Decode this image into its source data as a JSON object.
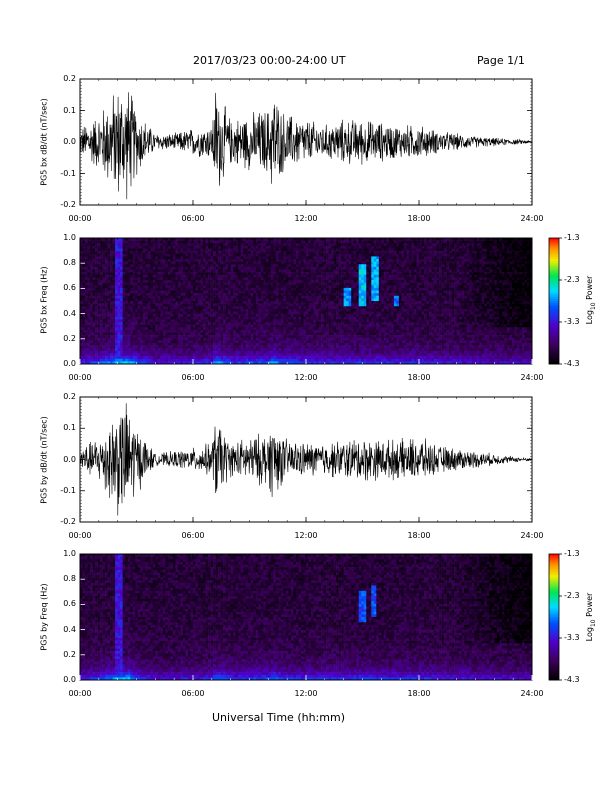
{
  "header": {
    "title": "2017/03/23  00:00-24:00 UT",
    "page": "Page 1/1"
  },
  "footer": {
    "xlabel": "Universal Time (hh:mm)"
  },
  "chart_data": [
    {
      "type": "line",
      "ylabel": "PG5 bx dB/dt (nT/sec)",
      "ylim": [
        -0.2,
        0.2
      ],
      "yticks": [
        "0.2",
        "0.1",
        "0.0",
        "-0.1",
        "-0.2"
      ],
      "xticks": [
        "00:00",
        "06:00",
        "12:00",
        "18:00",
        "24:00"
      ],
      "xlim_hours": [
        0,
        24
      ],
      "series": [
        {
          "x_hours": [
            0,
            1,
            2,
            2.3,
            2.6,
            3,
            4,
            5,
            6,
            7,
            7.2,
            8,
            9,
            10,
            10.3,
            10.6,
            11,
            12,
            13,
            14,
            15,
            16,
            17,
            18,
            19,
            20,
            21,
            22,
            23,
            24
          ],
          "envelope": [
            0.05,
            0.1,
            0.2,
            0.2,
            0.2,
            0.12,
            0.03,
            0.03,
            0.05,
            0.06,
            0.2,
            0.08,
            0.1,
            0.12,
            0.2,
            0.12,
            0.1,
            0.08,
            0.06,
            0.08,
            0.08,
            0.07,
            0.06,
            0.06,
            0.04,
            0.03,
            0.02,
            0.015,
            0.01,
            0.005
          ]
        }
      ]
    },
    {
      "type": "heatmap",
      "ylabel": "PG5 bx Freq (Hz)",
      "ylim": [
        0,
        1.0
      ],
      "yticks": [
        "1.0",
        "0.8",
        "0.6",
        "0.4",
        "0.2",
        "0.0"
      ],
      "xticks": [
        "00:00",
        "06:00",
        "12:00",
        "18:00",
        "24:00"
      ],
      "colorbar": {
        "label": "Log10 Power",
        "min": -4.3,
        "max": -1.3,
        "ticks": [
          "-1.3",
          "-2.3",
          "-3.3",
          "-4.3"
        ]
      },
      "features": [
        {
          "x_hours": 2.1,
          "f_hz": [
            0.0,
            1.0
          ],
          "level": -3.3
        },
        {
          "x_hours": 14.2,
          "f_hz": [
            0.45,
            0.6
          ],
          "level": -2.8
        },
        {
          "x_hours": 15.0,
          "f_hz": [
            0.45,
            0.8
          ],
          "level": -2.6
        },
        {
          "x_hours": 15.7,
          "f_hz": [
            0.5,
            0.85
          ],
          "level": -2.7
        },
        {
          "x_hours": 16.8,
          "f_hz": [
            0.45,
            0.55
          ],
          "level": -2.9
        }
      ]
    },
    {
      "type": "line",
      "ylabel": "PG5 by dB/dt (nT/sec)",
      "ylim": [
        -0.2,
        0.2
      ],
      "yticks": [
        "0.2",
        "0.1",
        "0.0",
        "-0.1",
        "-0.2"
      ],
      "xticks": [
        "00:00",
        "06:00",
        "12:00",
        "18:00",
        "24:00"
      ],
      "xlim_hours": [
        0,
        24
      ],
      "series": [
        {
          "x_hours": [
            0,
            1,
            2,
            2.3,
            2.6,
            3,
            4,
            5,
            6,
            7,
            7.2,
            8,
            9,
            10,
            10.3,
            10.6,
            11,
            12,
            13,
            14,
            15,
            16,
            17,
            18,
            19,
            20,
            21,
            22,
            23,
            24
          ],
          "envelope": [
            0.04,
            0.08,
            0.2,
            0.2,
            0.2,
            0.12,
            0.02,
            0.03,
            0.04,
            0.06,
            0.15,
            0.06,
            0.08,
            0.1,
            0.15,
            0.1,
            0.07,
            0.06,
            0.06,
            0.07,
            0.08,
            0.07,
            0.07,
            0.08,
            0.05,
            0.04,
            0.03,
            0.02,
            0.01,
            0.005
          ]
        }
      ]
    },
    {
      "type": "heatmap",
      "ylabel": "PG5 by Freq (Hz)",
      "ylim": [
        0,
        1.0
      ],
      "yticks": [
        "1.0",
        "0.8",
        "0.6",
        "0.4",
        "0.2",
        "0.0"
      ],
      "xticks": [
        "00:00",
        "06:00",
        "12:00",
        "18:00",
        "24:00"
      ],
      "colorbar": {
        "label": "Log10 Power",
        "min": -4.3,
        "max": -1.3,
        "ticks": [
          "-1.3",
          "-2.3",
          "-3.3",
          "-4.3"
        ]
      },
      "features": [
        {
          "x_hours": 2.1,
          "f_hz": [
            0.0,
            1.0
          ],
          "level": -3.3
        },
        {
          "x_hours": 15.0,
          "f_hz": [
            0.45,
            0.7
          ],
          "level": -3.0
        },
        {
          "x_hours": 15.6,
          "f_hz": [
            0.5,
            0.75
          ],
          "level": -3.0
        }
      ]
    }
  ]
}
